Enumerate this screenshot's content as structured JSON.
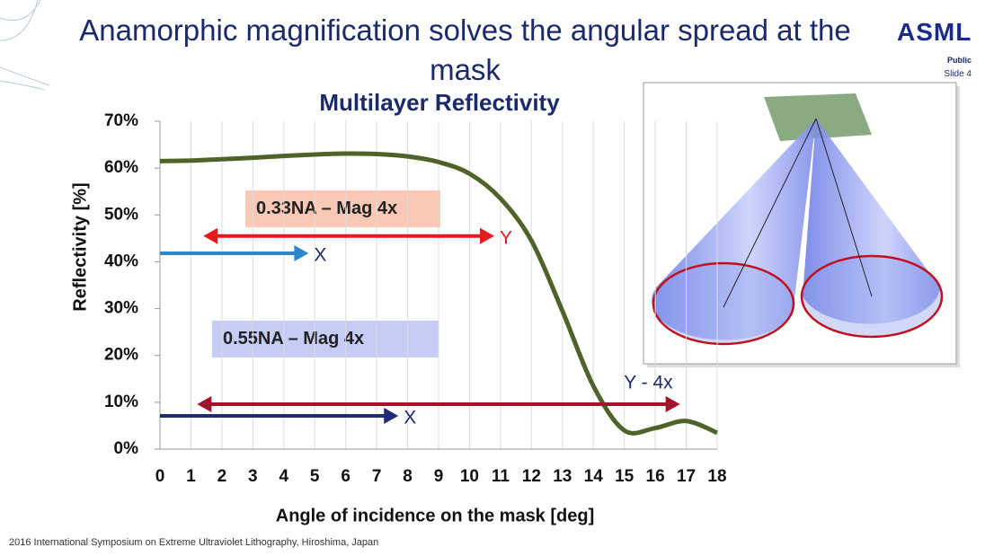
{
  "header": {
    "title": "Anamorphic magnification solves the angular spread at the mask",
    "logo": "ASML",
    "classification": "Public",
    "slide": "Slide 4"
  },
  "footer": "2016 International Symposium on Extreme Ultraviolet Lithography, Hiroshima, Japan",
  "chart_data": {
    "type": "line",
    "title": "Multilayer Reflectivity",
    "x_label": "Angle of incidence on the mask  [deg]",
    "y_label": "Reflectivity [%]",
    "x": [
      0,
      1,
      2,
      3,
      4,
      5,
      6,
      7,
      8,
      9,
      10,
      11,
      12,
      13,
      14,
      15,
      16,
      17,
      18
    ],
    "series": [
      {
        "color": "#4f6228",
        "values": [
          61.5,
          61.6,
          61.9,
          62.2,
          62.6,
          62.9,
          63.1,
          63.0,
          62.5,
          61.3,
          58.8,
          53.5,
          44.5,
          29.5,
          13.5,
          4.0,
          4.5,
          6.0,
          3.5
        ]
      }
    ],
    "xlim": [
      0,
      18
    ],
    "ylim": [
      0,
      70
    ],
    "xticks": [
      0,
      1,
      2,
      3,
      4,
      5,
      6,
      7,
      8,
      9,
      10,
      11,
      12,
      13,
      14,
      15,
      16,
      17,
      18
    ],
    "yticks": [
      {
        "value": 0,
        "label": "0%"
      },
      {
        "value": 10,
        "label": "10%"
      },
      {
        "value": 20,
        "label": "20%"
      },
      {
        "value": 30,
        "label": "30%"
      },
      {
        "value": 40,
        "label": "40%"
      },
      {
        "value": 50,
        "label": "50%"
      },
      {
        "value": 60,
        "label": "60%"
      },
      {
        "value": 70,
        "label": "70%"
      }
    ],
    "grid": "x",
    "boxes": [
      "0.33NA – Mag 4x",
      "0.55NA – Mag 4x"
    ],
    "arrows": [
      {
        "label": "Y",
        "x": [
          1.4,
          10.8
        ],
        "y": 45.5,
        "color": "#e41a1c",
        "both": true
      },
      {
        "label": "X",
        "x": [
          0,
          4.8
        ],
        "y": 41.8,
        "color": "#2e86d0",
        "both": false
      },
      {
        "label": "Y - 4x",
        "x": [
          1.2,
          16.8
        ],
        "y": 9.6,
        "color": "#a0142e",
        "both": true
      },
      {
        "label": "X",
        "x": [
          0,
          7.7
        ],
        "y": 7.1,
        "color": "#1f2a78",
        "both": false
      }
    ]
  }
}
